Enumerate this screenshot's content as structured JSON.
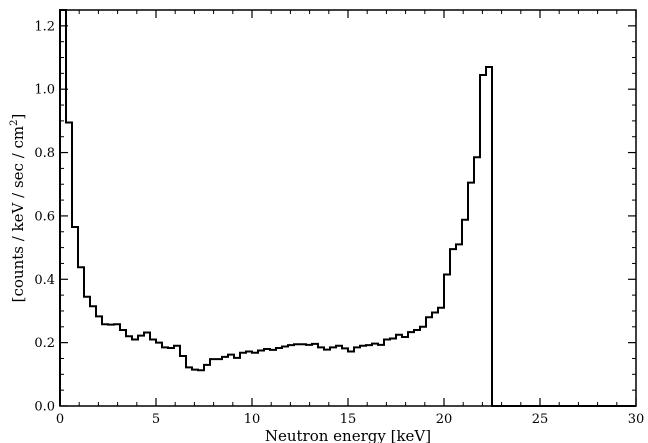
{
  "chart_data": {
    "type": "step",
    "xlabel": "Neutron energy [keV]",
    "ylabel": "[counts / keV / sec / cm",
    "ylabel_superscript": "2",
    "ylabel_suffix": "]",
    "xlim": [
      0,
      30
    ],
    "ylim": [
      0,
      1.25
    ],
    "xticks": [
      0,
      5,
      10,
      15,
      20,
      25,
      30
    ],
    "xtick_labels": [
      "0",
      "5",
      "10",
      "15",
      "20",
      "25",
      "30"
    ],
    "yticks": [
      0,
      0.2,
      0.4,
      0.6,
      0.8,
      1.0,
      1.2
    ],
    "ytick_labels": [
      "0.0",
      "0.2",
      "0.4",
      "0.6",
      "0.8",
      "1.0",
      "1.2"
    ],
    "bin_width": 0.3125,
    "bin_start": 0,
    "values": [
      1.25,
      0.895,
      0.565,
      0.438,
      0.345,
      0.315,
      0.283,
      0.258,
      0.257,
      0.258,
      0.24,
      0.22,
      0.21,
      0.222,
      0.232,
      0.21,
      0.2,
      0.185,
      0.183,
      0.19,
      0.158,
      0.122,
      0.115,
      0.113,
      0.13,
      0.148,
      0.148,
      0.155,
      0.162,
      0.152,
      0.168,
      0.172,
      0.168,
      0.175,
      0.18,
      0.177,
      0.183,
      0.188,
      0.192,
      0.195,
      0.195,
      0.193,
      0.196,
      0.185,
      0.178,
      0.185,
      0.19,
      0.182,
      0.172,
      0.185,
      0.19,
      0.192,
      0.197,
      0.193,
      0.21,
      0.213,
      0.225,
      0.218,
      0.233,
      0.24,
      0.25,
      0.28,
      0.295,
      0.31,
      0.415,
      0.495,
      0.51,
      0.588,
      0.705,
      0.785,
      1.045,
      1.07,
      0,
      0,
      0,
      0,
      0,
      0,
      0,
      0,
      0,
      0,
      0,
      0,
      0,
      0,
      0,
      0,
      0,
      0,
      0,
      0,
      0,
      0,
      0,
      0
    ],
    "line_color": "#000000",
    "grid": false,
    "legend": "none"
  }
}
